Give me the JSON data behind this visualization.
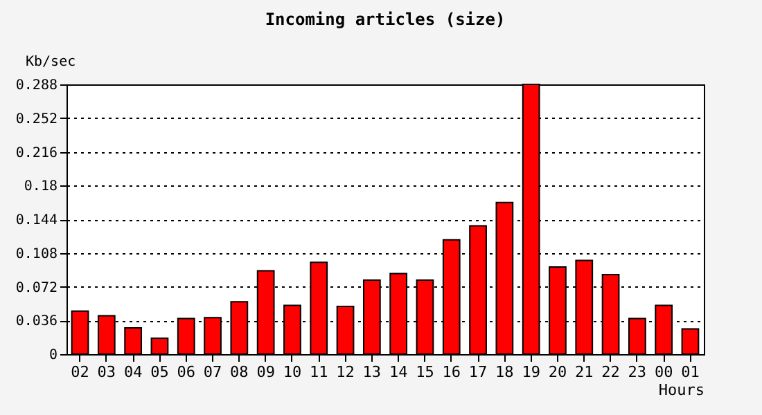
{
  "chart_data": {
    "type": "bar",
    "title": "Incoming articles (size)",
    "ylabel": "Kb/sec",
    "xlabel": "Hours",
    "categories": [
      "02",
      "03",
      "04",
      "05",
      "06",
      "07",
      "08",
      "09",
      "10",
      "11",
      "12",
      "13",
      "14",
      "15",
      "16",
      "17",
      "18",
      "19",
      "20",
      "21",
      "22",
      "23",
      "00",
      "01"
    ],
    "series": [
      {
        "color": "#ff0000",
        "values": [
          0.046,
          0.041,
          0.028,
          0.017,
          0.038,
          0.039,
          0.056,
          0.089,
          0.052,
          0.098,
          0.051,
          0.079,
          0.086,
          0.079,
          0.122,
          0.137,
          0.162,
          0.288,
          0.093,
          0.1,
          0.085,
          0.038,
          0.052,
          0.027
        ]
      }
    ],
    "ylim": [
      0,
      0.288
    ],
    "yticks": [
      0,
      0.036,
      0.072,
      0.108,
      0.144,
      0.18,
      0.216,
      0.252,
      0.288
    ],
    "grid": "y",
    "legend": false
  }
}
